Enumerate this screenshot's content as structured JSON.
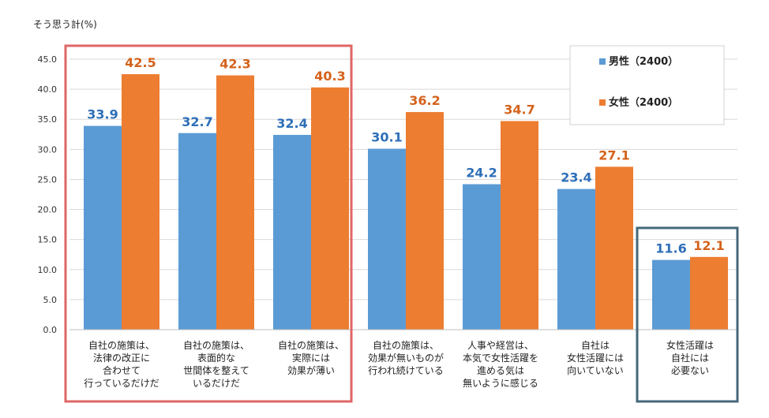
{
  "chart_data": {
    "type": "bar",
    "ylabel": "そう思う計(%)",
    "ylim": [
      0,
      45
    ],
    "yticks": [
      "0.0",
      "5.0",
      "10.0",
      "15.0",
      "20.0",
      "25.0",
      "30.0",
      "35.0",
      "40.0",
      "45.0"
    ],
    "grid": true,
    "legend_position": "top-right",
    "categories": [
      [
        "自社の施策は、",
        "法律の改正に",
        "合わせて",
        "行っているだけだ"
      ],
      [
        "自社の施策は、",
        "表面的な",
        "世間体を整えて",
        "いるだけだ"
      ],
      [
        "自社の施策は、",
        "実際には",
        "効果が薄い"
      ],
      [
        "自社の施策は、",
        "効果が無いものが",
        "行われ続けている"
      ],
      [
        "人事や経営は、",
        "本気で女性活躍を",
        "進める気は",
        "無いように感じる"
      ],
      [
        "自社は",
        "女性活躍には",
        "向いていない"
      ],
      [
        "女性活躍は",
        "自社には",
        "必要ない"
      ]
    ],
    "series": [
      {
        "name": "男性（2400）",
        "color": "#5b9bd5",
        "label_color": "#2e6fb8",
        "values": [
          33.9,
          32.7,
          32.4,
          30.1,
          24.2,
          23.4,
          11.6
        ]
      },
      {
        "name": "女性（2400）",
        "color": "#ed7d31",
        "label_color": "#d4621b",
        "values": [
          42.5,
          42.3,
          40.3,
          36.2,
          34.7,
          27.1,
          12.1
        ]
      }
    ],
    "highlight_colors": {
      "group_a": "#e06666",
      "group_b": "#45687a"
    }
  }
}
